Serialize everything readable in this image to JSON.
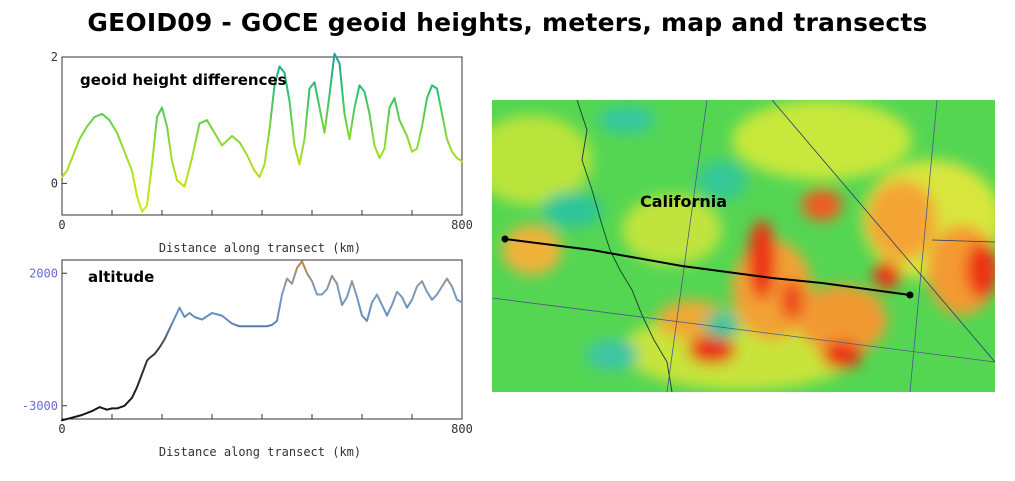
{
  "title": "GEOID09 - GOCE geoid heights, meters, map and transects",
  "chart_data": [
    {
      "type": "line",
      "label": "geoid height differences",
      "xlabel": "Distance along transect (km)",
      "xlim": [
        0,
        800
      ],
      "ylim": [
        -0.5,
        2
      ],
      "ytick_labels": [
        "2",
        "0"
      ],
      "xtick_labels": [
        "0",
        "800"
      ],
      "x": [
        0,
        10,
        20,
        35,
        50,
        65,
        80,
        95,
        110,
        125,
        140,
        150,
        160,
        170,
        180,
        190,
        200,
        210,
        220,
        230,
        245,
        260,
        275,
        290,
        305,
        320,
        340,
        355,
        370,
        385,
        395,
        405,
        415,
        425,
        435,
        445,
        455,
        465,
        475,
        485,
        495,
        505,
        515,
        525,
        535,
        545,
        555,
        565,
        575,
        585,
        595,
        605,
        615,
        625,
        635,
        645,
        655,
        665,
        675,
        690,
        700,
        710,
        720,
        730,
        740,
        750,
        760,
        770,
        780,
        790,
        800
      ],
      "y": [
        0.1,
        0.2,
        0.4,
        0.7,
        0.9,
        1.05,
        1.1,
        1.0,
        0.8,
        0.5,
        0.2,
        -0.2,
        -0.45,
        -0.35,
        0.3,
        1.05,
        1.2,
        0.9,
        0.35,
        0.05,
        -0.05,
        0.4,
        0.95,
        1.0,
        0.8,
        0.6,
        0.75,
        0.65,
        0.45,
        0.2,
        0.1,
        0.3,
        0.85,
        1.55,
        1.85,
        1.75,
        1.3,
        0.6,
        0.3,
        0.7,
        1.5,
        1.6,
        1.2,
        0.8,
        1.4,
        2.05,
        1.9,
        1.1,
        0.7,
        1.2,
        1.55,
        1.45,
        1.1,
        0.6,
        0.4,
        0.55,
        1.2,
        1.35,
        1.0,
        0.75,
        0.5,
        0.55,
        0.9,
        1.35,
        1.55,
        1.5,
        1.1,
        0.7,
        0.5,
        0.4,
        0.35
      ]
    },
    {
      "type": "line",
      "label": "altitude",
      "xlabel": "Distance along transect (km)",
      "xlim": [
        0,
        800
      ],
      "ylim": [
        -3500,
        2500
      ],
      "ytick_labels": [
        "2000",
        "-3000"
      ],
      "xtick_labels": [
        "0",
        "800"
      ],
      "x": [
        0,
        20,
        40,
        60,
        75,
        90,
        100,
        110,
        125,
        140,
        150,
        160,
        170,
        175,
        185,
        195,
        205,
        215,
        225,
        235,
        245,
        255,
        265,
        280,
        300,
        320,
        340,
        355,
        370,
        380,
        390,
        400,
        410,
        420,
        430,
        440,
        450,
        460,
        470,
        480,
        490,
        500,
        510,
        520,
        530,
        540,
        550,
        560,
        570,
        580,
        590,
        600,
        610,
        620,
        630,
        640,
        650,
        660,
        670,
        680,
        690,
        700,
        710,
        720,
        730,
        740,
        750,
        760,
        770,
        780,
        790,
        800
      ],
      "y": [
        -3550,
        -3450,
        -3350,
        -3200,
        -3050,
        -3150,
        -3100,
        -3100,
        -3000,
        -2700,
        -2300,
        -1800,
        -1300,
        -1200,
        -1050,
        -800,
        -500,
        -100,
        300,
        700,
        350,
        500,
        350,
        250,
        500,
        400,
        100,
        0,
        0,
        0,
        0,
        0,
        0,
        50,
        200,
        1200,
        1800,
        1600,
        2200,
        2450,
        2000,
        1700,
        1200,
        1200,
        1400,
        1900,
        1600,
        800,
        1100,
        1700,
        1100,
        400,
        200,
        900,
        1200,
        800,
        400,
        800,
        1300,
        1100,
        700,
        1000,
        1500,
        1700,
        1300,
        1000,
        1200,
        1500,
        1800,
        1500,
        1000,
        900
      ]
    }
  ],
  "map": {
    "label": "California",
    "transect_start": "west endpoint",
    "transect_end": "east endpoint"
  }
}
